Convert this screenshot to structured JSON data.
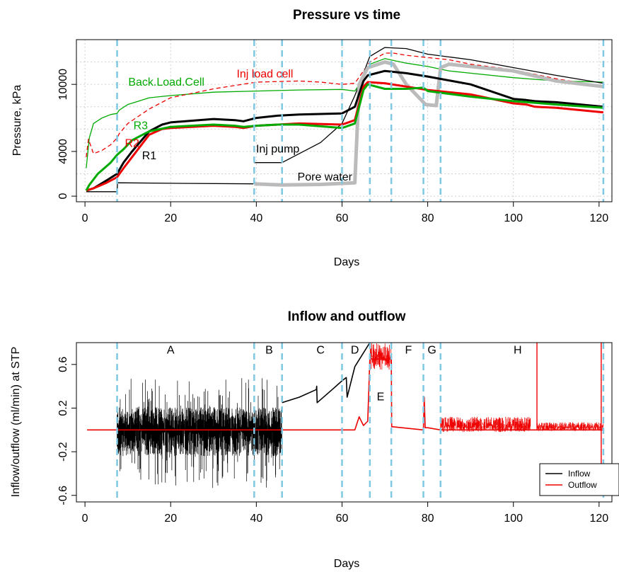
{
  "chart_data": [
    {
      "type": "line",
      "title": "Pressure vs time",
      "xlabel": "Days",
      "ylabel": "Pressure, kPa",
      "xlim": [
        -2,
        123
      ],
      "ylim": [
        -500,
        14000
      ],
      "xticks": [
        0,
        20,
        40,
        60,
        80,
        100,
        120
      ],
      "yticks": [
        0,
        4000,
        10000
      ],
      "ygrid": [
        0,
        2000,
        4000,
        6000,
        8000,
        10000,
        12000
      ],
      "vlines": [
        7.5,
        39.5,
        46,
        60,
        66.5,
        71.5,
        79,
        83,
        121
      ],
      "colors": {
        "black": "#000000",
        "red": "#ee0000",
        "green": "#00aa00",
        "gray": "#bbbbbb",
        "vline": "#7ec8e3"
      },
      "annotations": [
        {
          "text": "Back.Load.Cell",
          "x": 19,
          "y": 9900,
          "color": "#00aa00"
        },
        {
          "text": "Inj load cell",
          "x": 42,
          "y": 10600,
          "color": "#ee0000"
        },
        {
          "text": "R3",
          "x": 13,
          "y": 6000,
          "color": "#00aa00"
        },
        {
          "text": "R2",
          "x": 11,
          "y": 4400,
          "color": "#ee0000"
        },
        {
          "text": "R1",
          "x": 15,
          "y": 3300,
          "color": "#000000"
        },
        {
          "text": "Inj pump",
          "x": 45,
          "y": 3900,
          "color": "#000000"
        },
        {
          "text": "Pore water",
          "x": 56,
          "y": 1400,
          "color": "#000000"
        }
      ],
      "series": [
        {
          "color": "#00aa00",
          "width": 1.3,
          "dash": "",
          "x": [
            0.3,
            1,
            2,
            4,
            6,
            7.5,
            8,
            10,
            15,
            20,
            30,
            40,
            50,
            60,
            63,
            65,
            66.5,
            70,
            75,
            80,
            85,
            90,
            100,
            110,
            121
          ],
          "y": [
            2500,
            5200,
            6500,
            7000,
            7300,
            7400,
            7700,
            8200,
            8800,
            9000,
            9300,
            9400,
            9500,
            9550,
            9400,
            10500,
            11800,
            12300,
            11900,
            11600,
            11200,
            11000,
            10600,
            10300,
            10200
          ]
        },
        {
          "color": "#ee0000",
          "width": 1.3,
          "dash": "6,4",
          "x": [
            0.3,
            0.8,
            2,
            4,
            6,
            7.5,
            8,
            10,
            15,
            20,
            30,
            40,
            50,
            55,
            60,
            63,
            65,
            66.5,
            70,
            72,
            75,
            80,
            85,
            90,
            100,
            110,
            121
          ],
          "y": [
            3500,
            5100,
            3800,
            4100,
            4600,
            5200,
            5600,
            6500,
            7800,
            8800,
            9600,
            10200,
            10300,
            10200,
            10000,
            10100,
            11200,
            12000,
            12800,
            12800,
            12600,
            12400,
            12200,
            11800,
            11300,
            10500,
            9800
          ]
        },
        {
          "color": "#000000",
          "width": 1.3,
          "dash": "",
          "x": [
            0.3,
            7.5,
            7.6,
            20,
            39.3
          ],
          "y": [
            400,
            400,
            1200,
            1150,
            1100
          ]
        },
        {
          "color": "#000000",
          "width": 1.3,
          "dash": "",
          "x": [
            39.5,
            46,
            50,
            55,
            60,
            63,
            65,
            66.5,
            70,
            75,
            80,
            90,
            100,
            110,
            121
          ],
          "y": [
            3000,
            3000,
            3800,
            4800,
            6500,
            9000,
            11000,
            12500,
            13300,
            13200,
            12700,
            12200,
            11500,
            10800,
            10100
          ]
        },
        {
          "color": "#bbbbbb",
          "width": 5,
          "dash": "",
          "x": [
            39.5,
            46,
            55,
            63,
            64,
            66,
            70,
            72,
            75,
            79.5,
            82,
            83,
            85,
            90,
            100,
            110,
            121
          ],
          "y": [
            1100,
            1000,
            1050,
            1200,
            10000,
            11500,
            12000,
            11800,
            10000,
            8200,
            8100,
            11500,
            11800,
            11600,
            11200,
            10300,
            9800
          ]
        },
        {
          "color": "#000000",
          "width": 3,
          "dash": "",
          "x": [
            0.3,
            2,
            5,
            7.5,
            9,
            11,
            15,
            18,
            20,
            30,
            35,
            37,
            40,
            45,
            50,
            60,
            63,
            65,
            66,
            70,
            75,
            80,
            90,
            100,
            103,
            105,
            110,
            121
          ],
          "y": [
            500,
            700,
            1400,
            2000,
            3000,
            4000,
            5800,
            6400,
            6600,
            6900,
            6800,
            6700,
            7000,
            7200,
            7300,
            7400,
            8000,
            10300,
            10800,
            11200,
            11000,
            10700,
            10000,
            8700,
            8600,
            8500,
            8400,
            8000
          ]
        },
        {
          "color": "#ee0000",
          "width": 3,
          "dash": "",
          "x": [
            0.3,
            2,
            5,
            7.5,
            9,
            11,
            15,
            18,
            20,
            30,
            35,
            37,
            40,
            45,
            50,
            60,
            63,
            65,
            66,
            70,
            75,
            80,
            90,
            100,
            103,
            105,
            110,
            121
          ],
          "y": [
            500,
            700,
            1200,
            1700,
            2500,
            3500,
            5500,
            6000,
            6100,
            6300,
            6200,
            6100,
            6300,
            6400,
            6500,
            6400,
            6800,
            9800,
            10200,
            10100,
            9800,
            9500,
            9100,
            8300,
            8200,
            8000,
            7900,
            7500
          ]
        },
        {
          "color": "#00aa00",
          "width": 3,
          "dash": "",
          "x": [
            0.3,
            1,
            3,
            6,
            7.5,
            9,
            11,
            15,
            20,
            30,
            35,
            37,
            40,
            45,
            50,
            60,
            63,
            65,
            66,
            70,
            75,
            79,
            80,
            90,
            100,
            110,
            121
          ],
          "y": [
            500,
            1000,
            2000,
            3000,
            3700,
            4200,
            5000,
            5800,
            6200,
            6400,
            6300,
            6200,
            6300,
            6400,
            6400,
            6100,
            6500,
            9500,
            10000,
            9600,
            9600,
            9700,
            9400,
            8900,
            8500,
            8200,
            7900
          ]
        }
      ]
    },
    {
      "type": "line",
      "title": "Inflow and outflow",
      "xlabel": "Days",
      "ylabel": "Inflow/outflow (ml/min) at STP",
      "xlim": [
        -2,
        123
      ],
      "ylim": [
        -0.66,
        0.8
      ],
      "xticks": [
        0,
        20,
        40,
        60,
        80,
        100,
        120
      ],
      "yticks": [
        -0.6,
        -0.2,
        0.2,
        0.6
      ],
      "vlines": [
        7.5,
        39.5,
        46,
        60,
        66.5,
        71.5,
        79,
        83,
        121
      ],
      "legend": [
        {
          "name": "Inflow",
          "color": "#000000"
        },
        {
          "name": "Outflow",
          "color": "#ee0000"
        }
      ],
      "legend_position": "bottom-right",
      "annotations": [
        {
          "text": "A",
          "x": 20,
          "y": 0.7
        },
        {
          "text": "B",
          "x": 43,
          "y": 0.7
        },
        {
          "text": "C",
          "x": 55,
          "y": 0.7
        },
        {
          "text": "D",
          "x": 63,
          "y": 0.7
        },
        {
          "text": "E",
          "x": 69,
          "y": 0.27
        },
        {
          "text": "F",
          "x": 75.5,
          "y": 0.7
        },
        {
          "text": "G",
          "x": 81,
          "y": 0.7
        },
        {
          "text": "H",
          "x": 101,
          "y": 0.7
        }
      ],
      "series": [
        {
          "name": "Inflow",
          "color": "#000000",
          "noise_range": [
            7.5,
            46
          ],
          "noise_amplitude": 0.3,
          "x": [
            46,
            50,
            54,
            54.1,
            54.2,
            58,
            60,
            61,
            61.2,
            63,
            66.5
          ],
          "y": [
            0.25,
            0.3,
            0.37,
            0.4,
            0.25,
            0.38,
            0.45,
            0.48,
            0.3,
            0.58,
            0.8
          ]
        },
        {
          "name": "Outflow",
          "color": "#ee0000",
          "x": [
            0.5,
            63,
            64,
            65,
            66,
            66.5,
            71.5,
            71.6,
            79,
            79.2,
            79.4,
            80,
            83,
            121
          ],
          "y": [
            0,
            0,
            0.12,
            0.04,
            0.08,
            0.65,
            0.65,
            0.03,
            0,
            0.3,
            0.02,
            0.02,
            0,
            0
          ],
          "noise_segments": [
            [
              66.5,
              71.5,
              0.55,
              0.8
            ],
            [
              83,
              104,
              -0.02,
              0.12
            ],
            [
              105.6,
              121,
              -0.01,
              0.07
            ]
          ],
          "spikes": [
            [
              105.5,
              0.82
            ],
            [
              120.5,
              0.82
            ],
            [
              120.5,
              -0.45
            ]
          ]
        }
      ]
    }
  ]
}
